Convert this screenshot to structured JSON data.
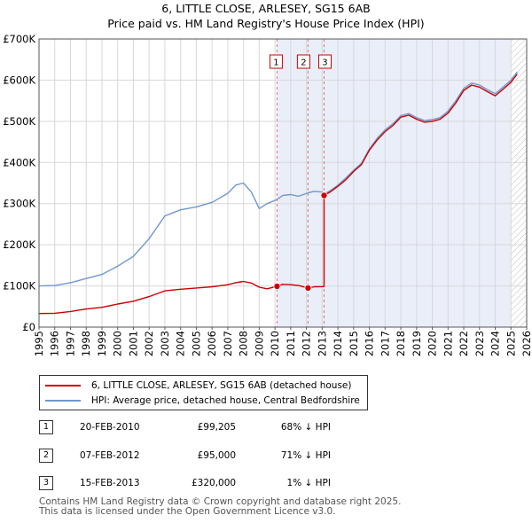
{
  "chart_data": {
    "type": "line",
    "title": "6, LITTLE CLOSE, ARLESEY, SG15 6AB",
    "subtitle": "Price paid vs. HM Land Registry's House Price Index (HPI)",
    "x_ticks": [
      1995,
      1996,
      1997,
      1998,
      1999,
      2000,
      2001,
      2002,
      2003,
      2004,
      2005,
      2006,
      2007,
      2008,
      2009,
      2010,
      2011,
      2012,
      2013,
      2014,
      2015,
      2016,
      2017,
      2018,
      2019,
      2020,
      2021,
      2022,
      2023,
      2024,
      2025,
      2026
    ],
    "y_ticks": [
      {
        "value": 0,
        "label": "£0"
      },
      {
        "value": 100000,
        "label": "£100K"
      },
      {
        "value": 200000,
        "label": "£200K"
      },
      {
        "value": 300000,
        "label": "£300K"
      },
      {
        "value": 400000,
        "label": "£400K"
      },
      {
        "value": 500000,
        "label": "£500K"
      },
      {
        "value": 600000,
        "label": "£600K"
      },
      {
        "value": 700000,
        "label": "£700K"
      }
    ],
    "xlim": [
      1995.0,
      2026.0
    ],
    "ylim": [
      0,
      700000
    ],
    "shade_from": 2010.13,
    "hatch_from": 2025.0,
    "series": [
      {
        "name": "6, LITTLE CLOSE, ARLESEY, SG15 6AB (detached house)",
        "color": "#cc0000",
        "points": [
          [
            1995.0,
            33000
          ],
          [
            1996.0,
            33500
          ],
          [
            1997.0,
            38000
          ],
          [
            1998.0,
            44000
          ],
          [
            1999.0,
            48000
          ],
          [
            2000.0,
            56000
          ],
          [
            2001.0,
            63000
          ],
          [
            2002.0,
            74000
          ],
          [
            2003.0,
            88000
          ],
          [
            2004.0,
            92000
          ],
          [
            2005.0,
            95000
          ],
          [
            2006.0,
            98000
          ],
          [
            2007.0,
            103000
          ],
          [
            2007.5,
            108000
          ],
          [
            2008.0,
            111000
          ],
          [
            2008.5,
            107000
          ],
          [
            2009.0,
            97000
          ],
          [
            2009.5,
            93000
          ],
          [
            2010.13,
            99205
          ],
          [
            2010.5,
            104000
          ],
          [
            2011.0,
            103000
          ],
          [
            2011.5,
            101000
          ],
          [
            2012.1,
            95000
          ],
          [
            2012.5,
            98000
          ],
          [
            2013.0,
            98500
          ],
          [
            2013.12,
            98700
          ],
          [
            2013.12,
            320000
          ],
          [
            2013.5,
            328000
          ],
          [
            2014.0,
            342000
          ],
          [
            2014.5,
            358000
          ],
          [
            2015.0,
            378000
          ],
          [
            2015.5,
            395000
          ],
          [
            2016.0,
            430000
          ],
          [
            2016.5,
            455000
          ],
          [
            2017.0,
            475000
          ],
          [
            2017.5,
            490000
          ],
          [
            2018.0,
            510000
          ],
          [
            2018.5,
            515000
          ],
          [
            2019.0,
            505000
          ],
          [
            2019.5,
            498000
          ],
          [
            2020.0,
            500000
          ],
          [
            2020.5,
            505000
          ],
          [
            2021.0,
            520000
          ],
          [
            2021.5,
            545000
          ],
          [
            2022.0,
            575000
          ],
          [
            2022.5,
            588000
          ],
          [
            2023.0,
            583000
          ],
          [
            2023.5,
            572000
          ],
          [
            2024.0,
            562000
          ],
          [
            2024.5,
            578000
          ],
          [
            2025.0,
            595000
          ],
          [
            2025.4,
            615000
          ]
        ]
      },
      {
        "name": "HPI: Average price, detached house, Central Bedfordshire",
        "color": "#6f97cf",
        "points": [
          [
            1995.0,
            100000
          ],
          [
            1996.0,
            101000
          ],
          [
            1997.0,
            108000
          ],
          [
            1998.0,
            118000
          ],
          [
            1999.0,
            128000
          ],
          [
            2000.0,
            148000
          ],
          [
            2001.0,
            172000
          ],
          [
            2002.0,
            215000
          ],
          [
            2003.0,
            270000
          ],
          [
            2004.0,
            285000
          ],
          [
            2005.0,
            292000
          ],
          [
            2006.0,
            303000
          ],
          [
            2007.0,
            325000
          ],
          [
            2007.5,
            345000
          ],
          [
            2008.0,
            350000
          ],
          [
            2008.5,
            328000
          ],
          [
            2009.0,
            288000
          ],
          [
            2009.5,
            300000
          ],
          [
            2010.13,
            310000
          ],
          [
            2010.5,
            320000
          ],
          [
            2011.0,
            322000
          ],
          [
            2011.5,
            318000
          ],
          [
            2012.1,
            326000
          ],
          [
            2012.5,
            330000
          ],
          [
            2013.0,
            328000
          ],
          [
            2013.12,
            323000
          ],
          [
            2013.5,
            331000
          ],
          [
            2014.0,
            345000
          ],
          [
            2014.5,
            362000
          ],
          [
            2015.0,
            381000
          ],
          [
            2015.5,
            398000
          ],
          [
            2016.0,
            433000
          ],
          [
            2016.5,
            459000
          ],
          [
            2017.0,
            479000
          ],
          [
            2017.5,
            494000
          ],
          [
            2018.0,
            514000
          ],
          [
            2018.5,
            519000
          ],
          [
            2019.0,
            509000
          ],
          [
            2019.5,
            502000
          ],
          [
            2020.0,
            504000
          ],
          [
            2020.5,
            509000
          ],
          [
            2021.0,
            525000
          ],
          [
            2021.5,
            550000
          ],
          [
            2022.0,
            580000
          ],
          [
            2022.5,
            593000
          ],
          [
            2023.0,
            588000
          ],
          [
            2023.5,
            577000
          ],
          [
            2024.0,
            567000
          ],
          [
            2024.5,
            583000
          ],
          [
            2025.0,
            600000
          ],
          [
            2025.4,
            620000
          ]
        ]
      }
    ],
    "transactions": [
      {
        "num": "1",
        "x": 2010.13,
        "price": 99205
      },
      {
        "num": "2",
        "x": 2012.1,
        "price": 95000
      },
      {
        "num": "3",
        "x": 2013.12,
        "price": 320000
      }
    ]
  },
  "legend": {
    "items": [
      {
        "label": "6, LITTLE CLOSE, ARLESEY, SG15 6AB (detached house)",
        "color": "#cc0000"
      },
      {
        "label": "HPI: Average price, detached house, Central Bedfordshire",
        "color": "#6f97cf"
      }
    ]
  },
  "table": {
    "rows": [
      {
        "num": "1",
        "date": "20-FEB-2010",
        "price": "£99,205",
        "hpi": "68% ↓ HPI"
      },
      {
        "num": "2",
        "date": "07-FEB-2012",
        "price": "£95,000",
        "hpi": "71% ↓ HPI"
      },
      {
        "num": "3",
        "date": "15-FEB-2013",
        "price": "£320,000",
        "hpi": "1% ↓ HPI"
      }
    ]
  },
  "footer": {
    "line1": "Contains HM Land Registry data © Crown copyright and database right 2025.",
    "line2": "This data is licensed under the Open Government Licence v3.0."
  }
}
